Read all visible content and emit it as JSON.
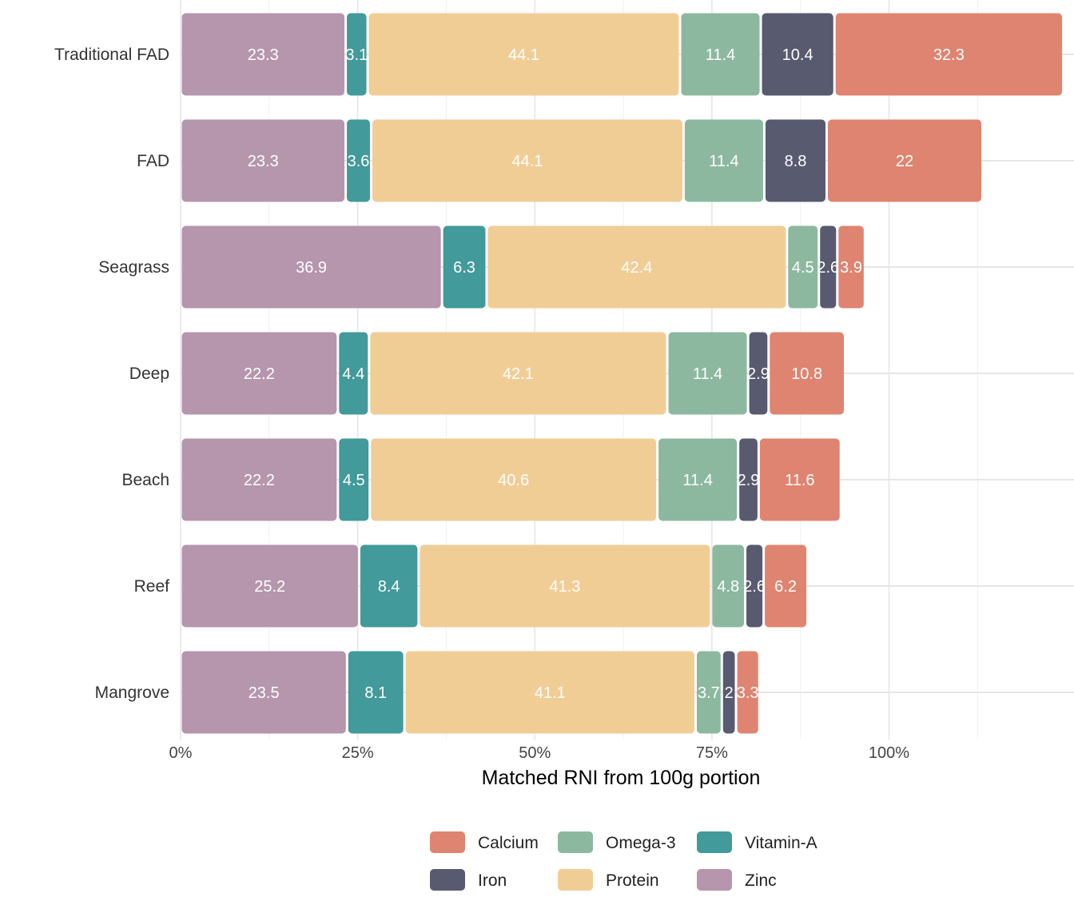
{
  "chart_data": {
    "type": "bar",
    "orientation": "horizontal",
    "stacked": true,
    "categories": [
      "Traditional FAD",
      "FAD",
      "Seagrass",
      "Deep",
      "Beach",
      "Reef",
      "Mangrove"
    ],
    "stack_order": [
      "Zinc",
      "Vitamin-A",
      "Protein",
      "Omega-3",
      "Iron",
      "Calcium"
    ],
    "series": [
      {
        "name": "Zinc",
        "color": "#b596ad",
        "values": [
          23.3,
          23.3,
          36.9,
          22.2,
          22.2,
          25.2,
          23.5
        ]
      },
      {
        "name": "Vitamin-A",
        "color": "#429a9a",
        "values": [
          3.1,
          3.6,
          6.3,
          4.4,
          4.5,
          8.4,
          8.1
        ]
      },
      {
        "name": "Protein",
        "color": "#f1cd96",
        "values": [
          44.1,
          44.1,
          42.4,
          42.1,
          40.6,
          41.3,
          41.1
        ]
      },
      {
        "name": "Omega-3",
        "color": "#8cb8a0",
        "values": [
          11.4,
          11.4,
          4.5,
          11.4,
          11.4,
          4.8,
          3.7
        ]
      },
      {
        "name": "Iron",
        "color": "#585a6f",
        "values": [
          10.4,
          8.8,
          2.6,
          2.9,
          2.9,
          2.6,
          2
        ]
      },
      {
        "name": "Calcium",
        "color": "#df8470",
        "values": [
          32.3,
          22,
          3.9,
          10.8,
          11.6,
          6.2,
          3.3
        ]
      }
    ],
    "xlabel": "Matched RNI from 100g portion",
    "ylabel": "",
    "xticks": [
      "0%",
      "25%",
      "50%",
      "75%",
      "100%"
    ],
    "xtick_values": [
      0,
      25,
      50,
      75,
      100
    ],
    "xlim": [
      0,
      124.6
    ],
    "grid": true,
    "legend_position": "bottom",
    "legend": {
      "rows": [
        [
          "Calcium",
          "Omega-3",
          "Vitamin-A"
        ],
        [
          "Iron",
          "Protein",
          "Zinc"
        ]
      ]
    }
  }
}
